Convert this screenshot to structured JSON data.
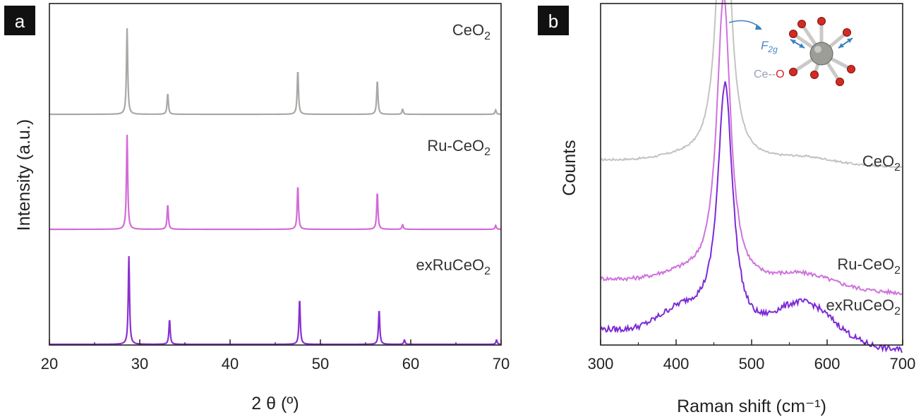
{
  "chart_data": [
    {
      "panel": "a",
      "type": "line",
      "title": "",
      "xlabel": "2 θ (º)",
      "ylabel": "Intensity (a.u.)",
      "xlim": [
        20,
        70
      ],
      "xticks": [
        20,
        30,
        40,
        50,
        60,
        70
      ],
      "yticks": [],
      "grid": false,
      "legend": "inline labels",
      "series": [
        {
          "name": "CeO",
          "sub": "2",
          "color": "#a8a9a4",
          "offset": 2.0,
          "peaks": [
            {
              "x": 28.6,
              "h": 1.0
            },
            {
              "x": 33.1,
              "h": 0.24
            },
            {
              "x": 47.5,
              "h": 0.51
            },
            {
              "x": 56.3,
              "h": 0.39
            },
            {
              "x": 59.1,
              "h": 0.06
            },
            {
              "x": 69.4,
              "h": 0.05
            }
          ]
        },
        {
          "name": "Ru-CeO",
          "sub": "2",
          "color": "#d56ad8",
          "offset": 1.0,
          "peaks": [
            {
              "x": 28.6,
              "h": 1.0
            },
            {
              "x": 33.1,
              "h": 0.26
            },
            {
              "x": 47.5,
              "h": 0.46
            },
            {
              "x": 56.3,
              "h": 0.39
            },
            {
              "x": 59.1,
              "h": 0.05
            },
            {
              "x": 69.4,
              "h": 0.04
            }
          ]
        },
        {
          "name": "exRuCeO",
          "sub": "2",
          "color": "#8a2fd0",
          "offset": 0.0,
          "peaks": [
            {
              "x": 28.8,
              "h": 1.0
            },
            {
              "x": 33.3,
              "h": 0.28
            },
            {
              "x": 47.7,
              "h": 0.51
            },
            {
              "x": 56.5,
              "h": 0.39
            },
            {
              "x": 59.3,
              "h": 0.05
            },
            {
              "x": 69.5,
              "h": 0.05
            }
          ]
        }
      ]
    },
    {
      "panel": "b",
      "type": "line",
      "title": "",
      "xlabel": "Raman shift (cm⁻¹)",
      "ylabel": "Counts",
      "xlim": [
        300,
        700
      ],
      "xticks": [
        300,
        400,
        500,
        600,
        700
      ],
      "yticks": [],
      "grid": false,
      "legend": "inline labels",
      "inset": {
        "mode": "F",
        "mode_sub": "2g",
        "bond_a": "Ce",
        "bond_sep": "--",
        "bond_b": "O"
      },
      "series": [
        {
          "name": "CeO",
          "sub": "2",
          "color": "#c3c3c1",
          "baseline": 0.565,
          "peak_x": 463,
          "peak_h": 1.0,
          "width": 10,
          "shoulder": 0.02
        },
        {
          "name": "Ru-CeO",
          "sub": "2",
          "color": "#cf72dd",
          "baseline": 0.2,
          "peak_x": 463,
          "peak_h": 0.885,
          "width": 11,
          "shoulder": 0.04
        },
        {
          "name": "exRuCeO",
          "sub": "2",
          "color": "#7c2ad6",
          "baseline": 0.045,
          "peak_x": 465,
          "peak_h": 0.77,
          "width": 12,
          "shoulder": 0.12
        }
      ]
    }
  ]
}
